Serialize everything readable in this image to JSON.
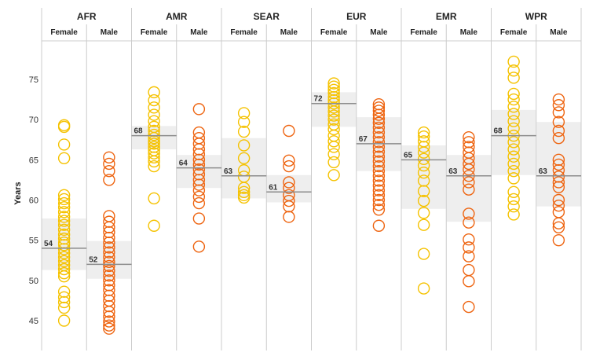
{
  "chart_data": {
    "type": "scatter",
    "title": "",
    "ylabel": "Years",
    "ylim": [
      43,
      79
    ],
    "yticks": [
      45,
      50,
      55,
      60,
      65,
      70,
      75
    ],
    "grid": false,
    "colors": {
      "Female": "#f5c200",
      "Male": "#ee6410",
      "median_line": "#8c8c8c",
      "iqr_band": "#eeeeee",
      "divider": "#cccccc"
    },
    "regions": [
      {
        "name": "AFR",
        "groups": [
          {
            "sex": "Female",
            "median": 54,
            "median_label": "54",
            "q1": 51.3,
            "q3": 57.7,
            "values": [
              69.3,
              69.1,
              66.9,
              65.2,
              60.6,
              60.1,
              59.6,
              59.1,
              58.5,
              57.9,
              57.4,
              56.9,
              56.3,
              55.7,
              55.2,
              54.7,
              54.4,
              53.9,
              53.4,
              52.9,
              52.4,
              51.9,
              51.4,
              50.9,
              50.5,
              48.6,
              47.9,
              47.3,
              46.6,
              45.0
            ]
          },
          {
            "sex": "Male",
            "median": 52,
            "median_label": "52",
            "q1": 50.2,
            "q3": 54.9,
            "values": [
              65.3,
              64.5,
              63.6,
              62.5,
              58.0,
              57.3,
              56.6,
              56.0,
              55.3,
              54.7,
              54.1,
              53.5,
              52.9,
              52.3,
              51.8,
              51.2,
              50.6,
              50.0,
              49.4,
              48.8,
              48.1,
              47.5,
              46.8,
              46.1,
              45.5,
              44.9,
              44.4,
              44.0
            ]
          }
        ]
      },
      {
        "name": "AMR",
        "groups": [
          {
            "sex": "Female",
            "median": 68,
            "median_label": "68",
            "q1": 66.3,
            "q3": 69.2,
            "values": [
              73.4,
              72.4,
              71.5,
              70.6,
              69.8,
              69.1,
              68.6,
              68.1,
              67.7,
              67.3,
              67.0,
              66.6,
              66.2,
              65.8,
              65.3,
              64.8,
              64.2,
              60.2,
              56.8
            ]
          },
          {
            "sex": "Male",
            "median": 64,
            "median_label": "64",
            "q1": 61.5,
            "q3": 65.6,
            "values": [
              71.3,
              68.4,
              67.7,
              67.0,
              66.3,
              65.7,
              65.0,
              64.4,
              63.8,
              63.2,
              62.5,
              61.9,
              61.2,
              60.4,
              59.6,
              57.7,
              54.2
            ]
          }
        ]
      },
      {
        "name": "SEAR",
        "groups": [
          {
            "sex": "Female",
            "median": 63,
            "median_label": "63",
            "q1": 60.2,
            "q3": 67.7,
            "values": [
              70.8,
              69.7,
              68.5,
              66.8,
              65.2,
              63.7,
              62.9,
              61.5,
              61.0,
              60.6,
              60.3
            ]
          },
          {
            "sex": "Male",
            "median": 61,
            "median_label": "61",
            "q1": 59.7,
            "q3": 63.1,
            "values": [
              68.6,
              64.9,
              64.2,
              62.2,
              61.5,
              60.6,
              59.9,
              59.2,
              57.9
            ]
          }
        ]
      },
      {
        "name": "EUR",
        "groups": [
          {
            "sex": "Female",
            "median": 72,
            "median_label": "72",
            "q1": 69.1,
            "q3": 73.4,
            "values": [
              74.5,
              74.1,
              73.7,
              73.3,
              72.8,
              72.4,
              72.0,
              71.5,
              71.0,
              70.5,
              70.0,
              69.4,
              68.8,
              68.0,
              67.3,
              66.6,
              65.7,
              64.7,
              63.1
            ]
          },
          {
            "sex": "Male",
            "median": 67,
            "median_label": "67",
            "q1": 63.6,
            "q3": 70.3,
            "values": [
              71.9,
              71.5,
              71.1,
              70.6,
              70.1,
              69.6,
              69.0,
              68.4,
              67.8,
              67.2,
              66.6,
              66.0,
              65.4,
              64.8,
              64.2,
              63.6,
              63.0,
              62.4,
              61.8,
              61.2,
              60.6,
              60.0,
              59.4,
              58.8,
              56.8
            ]
          }
        ]
      },
      {
        "name": "EMR",
        "groups": [
          {
            "sex": "Female",
            "median": 65,
            "median_label": "65",
            "q1": 58.9,
            "q3": 66.8,
            "values": [
              68.4,
              67.9,
              67.3,
              66.6,
              65.9,
              65.1,
              64.3,
              63.4,
              62.4,
              61.1,
              59.9,
              58.4,
              56.9,
              53.3,
              49.0
            ]
          },
          {
            "sex": "Male",
            "median": 63,
            "median_label": "63",
            "q1": 57.3,
            "q3": 65.6,
            "values": [
              67.8,
              67.2,
              66.6,
              65.9,
              65.2,
              64.5,
              63.8,
              63.0,
              62.2,
              61.3,
              58.3,
              57.2,
              55.1,
              54.1,
              53.0,
              51.3,
              49.9,
              46.7
            ]
          }
        ]
      },
      {
        "name": "WPR",
        "groups": [
          {
            "sex": "Female",
            "median": 68,
            "median_label": "68",
            "q1": 63.1,
            "q3": 71.2,
            "values": [
              77.2,
              76.1,
              75.2,
              73.2,
              72.5,
              71.6,
              70.7,
              69.8,
              68.9,
              68.0,
              67.2,
              66.3,
              65.4,
              64.5,
              63.6,
              62.7,
              61.0,
              60.1,
              59.2,
              58.2
            ]
          },
          {
            "sex": "Male",
            "median": 63,
            "median_label": "63",
            "q1": 59.2,
            "q3": 69.7,
            "values": [
              72.5,
              71.8,
              70.9,
              69.7,
              68.6,
              67.7,
              65.0,
              64.4,
              63.7,
              62.9,
              62.2,
              61.6,
              60.0,
              59.3,
              58.5,
              57.1,
              56.6,
              55.0
            ]
          }
        ]
      }
    ]
  }
}
